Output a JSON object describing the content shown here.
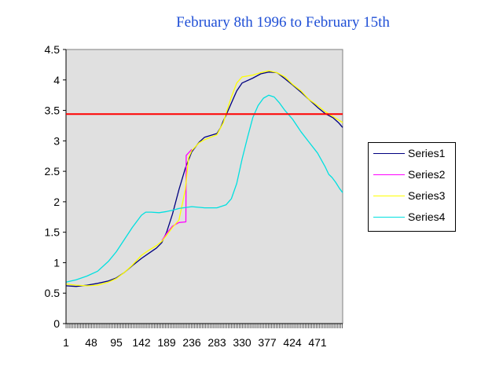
{
  "chart_data": {
    "type": "line",
    "title": "February 8th 1996 to February 15th",
    "xlabel": "",
    "ylabel": "",
    "x_range": [
      1,
      518
    ],
    "ylim": [
      0,
      4.5
    ],
    "y_ticks": [
      "0",
      "0.5",
      "1",
      "1.5",
      "2",
      "2.5",
      "3",
      "3.5",
      "4",
      "4.5"
    ],
    "y_tick_values": [
      0,
      0.5,
      1,
      1.5,
      2,
      2.5,
      3,
      3.5,
      4,
      4.5
    ],
    "x_ticks": [
      "1",
      "48",
      "95",
      "142",
      "189",
      "236",
      "283",
      "330",
      "377",
      "424",
      "471"
    ],
    "x_tick_values": [
      1,
      48,
      95,
      142,
      189,
      236,
      283,
      330,
      377,
      424,
      471
    ],
    "grid": false,
    "plot_background": "#e0e0e0",
    "legend_position": "right",
    "reference_line": {
      "y": 3.44,
      "color": "#ff0000"
    },
    "series": [
      {
        "name": "Series1",
        "color": "#000080",
        "points": [
          [
            1,
            0.62
          ],
          [
            20,
            0.61
          ],
          [
            40,
            0.63
          ],
          [
            60,
            0.66
          ],
          [
            80,
            0.7
          ],
          [
            95,
            0.75
          ],
          [
            110,
            0.84
          ],
          [
            125,
            0.95
          ],
          [
            142,
            1.07
          ],
          [
            155,
            1.15
          ],
          [
            170,
            1.24
          ],
          [
            180,
            1.33
          ],
          [
            189,
            1.5
          ],
          [
            200,
            1.8
          ],
          [
            212,
            2.2
          ],
          [
            224,
            2.55
          ],
          [
            236,
            2.82
          ],
          [
            250,
            2.98
          ],
          [
            260,
            3.06
          ],
          [
            283,
            3.12
          ],
          [
            290,
            3.22
          ],
          [
            295,
            3.33
          ],
          [
            300,
            3.42
          ],
          [
            310,
            3.62
          ],
          [
            320,
            3.82
          ],
          [
            330,
            3.95
          ],
          [
            350,
            4.03
          ],
          [
            365,
            4.1
          ],
          [
            380,
            4.13
          ],
          [
            395,
            4.12
          ],
          [
            410,
            4.02
          ],
          [
            424,
            3.92
          ],
          [
            440,
            3.8
          ],
          [
            455,
            3.68
          ],
          [
            471,
            3.55
          ],
          [
            485,
            3.45
          ],
          [
            500,
            3.38
          ],
          [
            510,
            3.3
          ],
          [
            518,
            3.22
          ]
        ]
      },
      {
        "name": "Series2",
        "color": "#ff00ff",
        "points": [
          [
            180,
            1.36
          ],
          [
            189,
            1.48
          ],
          [
            200,
            1.6
          ],
          [
            212,
            1.66
          ],
          [
            225,
            1.67
          ],
          [
            225.5,
            2.76
          ],
          [
            236,
            2.86
          ]
        ]
      },
      {
        "name": "Series3",
        "color": "#ffff00",
        "points": [
          [
            1,
            0.65
          ],
          [
            20,
            0.63
          ],
          [
            40,
            0.62
          ],
          [
            60,
            0.63
          ],
          [
            80,
            0.68
          ],
          [
            95,
            0.74
          ],
          [
            110,
            0.84
          ],
          [
            125,
            0.96
          ],
          [
            142,
            1.12
          ],
          [
            155,
            1.2
          ],
          [
            170,
            1.28
          ],
          [
            180,
            1.35
          ],
          [
            189,
            1.45
          ],
          [
            200,
            1.58
          ],
          [
            212,
            1.7
          ],
          [
            224,
            2.2
          ],
          [
            230,
            2.72
          ],
          [
            236,
            2.84
          ],
          [
            250,
            2.97
          ],
          [
            260,
            3.02
          ],
          [
            283,
            3.1
          ],
          [
            295,
            3.3
          ],
          [
            300,
            3.45
          ],
          [
            310,
            3.72
          ],
          [
            320,
            3.95
          ],
          [
            330,
            4.05
          ],
          [
            350,
            4.08
          ],
          [
            365,
            4.12
          ],
          [
            380,
            4.15
          ],
          [
            395,
            4.12
          ],
          [
            410,
            4.05
          ],
          [
            424,
            3.93
          ],
          [
            440,
            3.82
          ],
          [
            455,
            3.68
          ],
          [
            471,
            3.58
          ],
          [
            485,
            3.48
          ],
          [
            500,
            3.4
          ],
          [
            518,
            3.3
          ]
        ]
      },
      {
        "name": "Series4",
        "color": "#00e0e0",
        "points": [
          [
            1,
            0.68
          ],
          [
            20,
            0.72
          ],
          [
            40,
            0.78
          ],
          [
            60,
            0.86
          ],
          [
            80,
            1.02
          ],
          [
            95,
            1.18
          ],
          [
            110,
            1.38
          ],
          [
            125,
            1.58
          ],
          [
            142,
            1.78
          ],
          [
            150,
            1.83
          ],
          [
            160,
            1.83
          ],
          [
            175,
            1.82
          ],
          [
            189,
            1.84
          ],
          [
            200,
            1.86
          ],
          [
            212,
            1.89
          ],
          [
            236,
            1.92
          ],
          [
            260,
            1.9
          ],
          [
            283,
            1.9
          ],
          [
            300,
            1.95
          ],
          [
            310,
            2.05
          ],
          [
            320,
            2.3
          ],
          [
            330,
            2.7
          ],
          [
            340,
            3.05
          ],
          [
            350,
            3.38
          ],
          [
            360,
            3.58
          ],
          [
            370,
            3.7
          ],
          [
            380,
            3.75
          ],
          [
            390,
            3.72
          ],
          [
            400,
            3.62
          ],
          [
            410,
            3.5
          ],
          [
            424,
            3.36
          ],
          [
            440,
            3.15
          ],
          [
            455,
            2.98
          ],
          [
            471,
            2.8
          ],
          [
            485,
            2.58
          ],
          [
            492,
            2.45
          ],
          [
            498,
            2.4
          ],
          [
            505,
            2.32
          ],
          [
            512,
            2.22
          ],
          [
            518,
            2.15
          ]
        ]
      }
    ]
  }
}
